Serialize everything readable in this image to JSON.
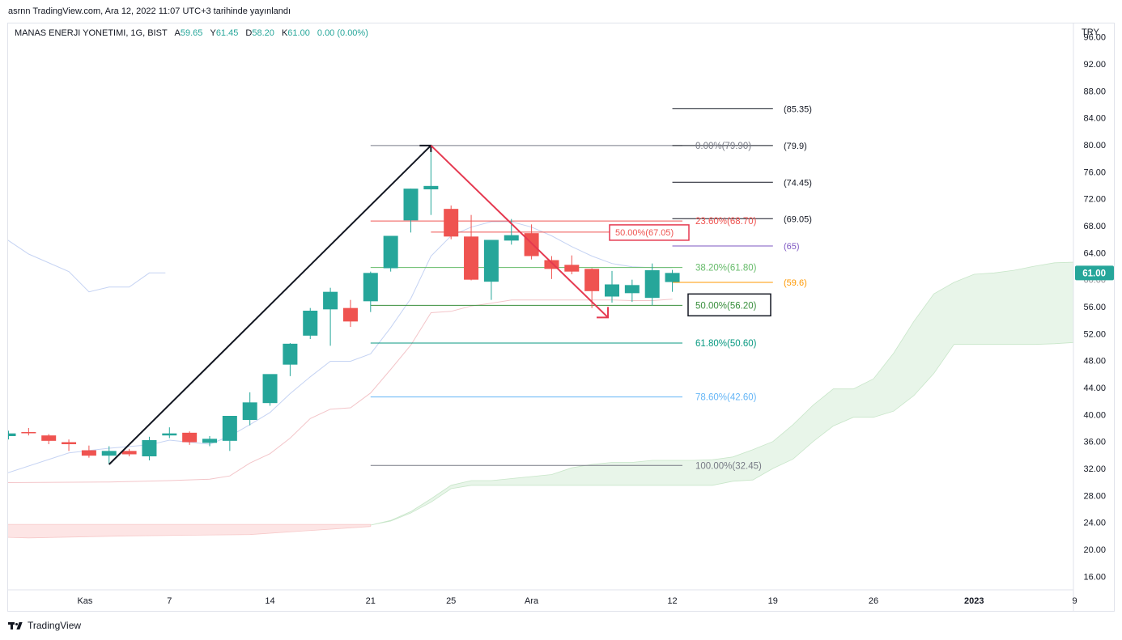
{
  "caption": "asrnn TradingView.com, Ara 12, 2022 11:07 UTC+3 tarihinde yayınlandı",
  "legend": {
    "symbol": "MANAS ENERJI YONETIMI, 1G, BIST",
    "open_label": "A",
    "open": "59.65",
    "high_label": "Y",
    "high": "61.45",
    "low_label": "D",
    "low": "58.20",
    "close_label": "K",
    "close": "61.00",
    "change": "0.00 (0.00%)"
  },
  "currency": "TRY",
  "brand": "TradingView",
  "colors": {
    "up": "#26a69a",
    "down": "#ef5350",
    "tenkan": "#c5d3f3",
    "kijun": "#f3c5c9",
    "cloud_bull": "#e8f5e9",
    "cloud_bear": "#fde5e5",
    "fib_red": "#ef5350",
    "fib_green_light": "#66bb6a",
    "fib_green": "#388e3c",
    "fib_teal": "#089981",
    "fib_blue": "#64b5f6",
    "fib_gray": "#787b86",
    "orange": "#ff9800",
    "purple": "#7e57c2"
  },
  "chart_data": {
    "type": "candlestick",
    "ylim": [
      14,
      98
    ],
    "y_ticks": [
      "16.00",
      "20.00",
      "24.00",
      "28.00",
      "32.00",
      "36.00",
      "40.00",
      "44.00",
      "48.00",
      "52.00",
      "56.00",
      "60.00",
      "64.00",
      "68.00",
      "72.00",
      "76.00",
      "80.00",
      "84.00",
      "88.00",
      "92.00",
      "96.00"
    ],
    "x_ticks": [
      {
        "slot": 3.8,
        "label": "Kas"
      },
      {
        "slot": 8,
        "label": "7"
      },
      {
        "slot": 13,
        "label": "14"
      },
      {
        "slot": 18,
        "label": "21"
      },
      {
        "slot": 22,
        "label": "25"
      },
      {
        "slot": 26,
        "label": "Ara"
      },
      {
        "slot": 33,
        "label": "12"
      },
      {
        "slot": 38,
        "label": "19"
      },
      {
        "slot": 43,
        "label": "26"
      },
      {
        "slot": 48,
        "label": "2023",
        "bold": true
      },
      {
        "slot": 53,
        "label": "9"
      }
    ],
    "candles": [
      {
        "slot": 0,
        "o": 36.8,
        "h": 37.6,
        "l": 36.3,
        "c": 37.2
      },
      {
        "slot": 1,
        "o": 37.4,
        "h": 38.0,
        "l": 36.9,
        "c": 37.3
      },
      {
        "slot": 2,
        "o": 36.9,
        "h": 37.1,
        "l": 35.6,
        "c": 36.1
      },
      {
        "slot": 3,
        "o": 35.9,
        "h": 36.3,
        "l": 34.6,
        "c": 35.6
      },
      {
        "slot": 4,
        "o": 34.7,
        "h": 35.4,
        "l": 33.6,
        "c": 33.9
      },
      {
        "slot": 5,
        "o": 33.9,
        "h": 35.3,
        "l": 32.6,
        "c": 34.6
      },
      {
        "slot": 6,
        "o": 34.6,
        "h": 34.9,
        "l": 33.8,
        "c": 34.1
      },
      {
        "slot": 7,
        "o": 33.8,
        "h": 36.7,
        "l": 33.2,
        "c": 36.2
      },
      {
        "slot": 8,
        "o": 36.9,
        "h": 38.1,
        "l": 36.5,
        "c": 37.2
      },
      {
        "slot": 9,
        "o": 37.3,
        "h": 37.5,
        "l": 35.5,
        "c": 35.9
      },
      {
        "slot": 10,
        "o": 35.8,
        "h": 36.8,
        "l": 35.3,
        "c": 36.4
      },
      {
        "slot": 11,
        "o": 36.1,
        "h": 39.6,
        "l": 34.6,
        "c": 39.8
      },
      {
        "slot": 12,
        "o": 39.2,
        "h": 43.3,
        "l": 38.4,
        "c": 41.8
      },
      {
        "slot": 13,
        "o": 41.7,
        "h": 45.9,
        "l": 41.3,
        "c": 46.0
      },
      {
        "slot": 14,
        "o": 47.4,
        "h": 50.6,
        "l": 45.7,
        "c": 50.5
      },
      {
        "slot": 15,
        "o": 51.7,
        "h": 55.8,
        "l": 51.2,
        "c": 55.4
      },
      {
        "slot": 16,
        "o": 55.6,
        "h": 58.8,
        "l": 50.2,
        "c": 58.2
      },
      {
        "slot": 17,
        "o": 55.8,
        "h": 57.0,
        "l": 53.0,
        "c": 53.8
      },
      {
        "slot": 18,
        "o": 56.8,
        "h": 61.2,
        "l": 55.2,
        "c": 61.0
      },
      {
        "slot": 19,
        "o": 61.7,
        "h": 66.5,
        "l": 61.2,
        "c": 66.5
      },
      {
        "slot": 20,
        "o": 68.8,
        "h": 73.5,
        "l": 67.0,
        "c": 73.5
      },
      {
        "slot": 21,
        "o": 73.4,
        "h": 79.8,
        "l": 69.6,
        "c": 73.9
      },
      {
        "slot": 22,
        "o": 70.5,
        "h": 71.0,
        "l": 66.0,
        "c": 66.4
      },
      {
        "slot": 23,
        "o": 66.4,
        "h": 69.6,
        "l": 59.9,
        "c": 60.0
      },
      {
        "slot": 24,
        "o": 59.7,
        "h": 65.9,
        "l": 57.0,
        "c": 65.9
      },
      {
        "slot": 25,
        "o": 65.8,
        "h": 69.0,
        "l": 65.2,
        "c": 66.6
      },
      {
        "slot": 26,
        "o": 66.9,
        "h": 68.2,
        "l": 63.0,
        "c": 63.5
      },
      {
        "slot": 27,
        "o": 62.9,
        "h": 63.5,
        "l": 60.1,
        "c": 61.6
      },
      {
        "slot": 28,
        "o": 62.2,
        "h": 63.6,
        "l": 60.8,
        "c": 61.2
      },
      {
        "slot": 29,
        "o": 61.6,
        "h": 61.7,
        "l": 55.8,
        "c": 58.3
      },
      {
        "slot": 30,
        "o": 57.5,
        "h": 61.3,
        "l": 56.6,
        "c": 59.3
      },
      {
        "slot": 31,
        "o": 58.0,
        "h": 60.0,
        "l": 56.7,
        "c": 59.2
      },
      {
        "slot": 32,
        "o": 57.3,
        "h": 62.4,
        "l": 56.2,
        "c": 61.4
      },
      {
        "slot": 33,
        "o": 59.65,
        "h": 61.45,
        "l": 58.2,
        "c": 61.0
      }
    ],
    "tenkan": [
      [
        -0.2,
        66.2
      ],
      [
        1,
        63.8
      ],
      [
        3,
        61.2
      ],
      [
        4,
        58.2
      ],
      [
        5,
        58.9
      ],
      [
        6,
        58.9
      ],
      [
        7,
        61.0
      ],
      [
        7.8,
        61.0
      ]
    ],
    "tenkan2": [
      [
        -0.2,
        31.2
      ],
      [
        3,
        34.3
      ],
      [
        5,
        35.0
      ],
      [
        7,
        35.5
      ],
      [
        8,
        36.2
      ],
      [
        10,
        35.6
      ],
      [
        11,
        36.8
      ],
      [
        12,
        38.5
      ],
      [
        13,
        40.3
      ],
      [
        14,
        43.1
      ],
      [
        15,
        45.6
      ],
      [
        16,
        47.9
      ],
      [
        17,
        47.9
      ],
      [
        18,
        49.0
      ],
      [
        19,
        52.9
      ],
      [
        20,
        57.2
      ],
      [
        21,
        63.5
      ],
      [
        22,
        66.5
      ],
      [
        23,
        67.8
      ],
      [
        24,
        68.6
      ],
      [
        25,
        68.6
      ],
      [
        26,
        67.8
      ],
      [
        27,
        66.5
      ],
      [
        28,
        64.9
      ],
      [
        29,
        63.5
      ],
      [
        30,
        62.4
      ],
      [
        31,
        61.9
      ],
      [
        32,
        61.8
      ],
      [
        33,
        61.8
      ]
    ],
    "kijun": [
      [
        -0.2,
        29.9
      ],
      [
        5,
        30.0
      ],
      [
        8,
        30.2
      ],
      [
        10,
        30.4
      ],
      [
        11,
        30.9
      ],
      [
        12,
        32.8
      ],
      [
        13,
        34.2
      ],
      [
        14,
        36.5
      ],
      [
        15,
        39.4
      ],
      [
        16,
        40.8
      ],
      [
        17,
        41.0
      ],
      [
        18,
        43.2
      ],
      [
        19,
        46.7
      ],
      [
        20,
        50.3
      ],
      [
        21,
        55.1
      ],
      [
        22,
        55.3
      ],
      [
        23,
        56.1
      ],
      [
        24,
        56.5
      ],
      [
        25,
        57.0
      ],
      [
        26,
        57.0
      ],
      [
        27,
        57.0
      ],
      [
        28,
        57.0
      ],
      [
        29,
        57.0
      ],
      [
        30,
        57.0
      ],
      [
        31,
        56.9
      ],
      [
        32,
        56.9
      ],
      [
        33,
        57.1
      ]
    ],
    "cloud_green_top": [
      [
        18,
        23.6
      ],
      [
        19,
        24.3
      ],
      [
        20,
        25.6
      ],
      [
        21,
        27.5
      ],
      [
        22,
        29.5
      ],
      [
        23,
        30.2
      ],
      [
        24,
        30.2
      ],
      [
        25,
        30.5
      ],
      [
        26,
        30.8
      ],
      [
        27,
        31.1
      ],
      [
        28,
        32.1
      ],
      [
        29,
        32.6
      ],
      [
        30,
        32.9
      ],
      [
        31,
        32.9
      ],
      [
        32,
        33.2
      ],
      [
        33,
        33.2
      ],
      [
        34,
        33.2
      ],
      [
        35,
        33.3
      ],
      [
        36,
        33.7
      ],
      [
        37,
        34.8
      ],
      [
        38,
        36.0
      ],
      [
        39,
        38.5
      ],
      [
        40,
        41.4
      ],
      [
        41,
        43.8
      ],
      [
        42,
        43.8
      ],
      [
        43,
        45.3
      ],
      [
        44,
        49.1
      ],
      [
        45,
        53.8
      ],
      [
        46,
        57.9
      ],
      [
        47,
        59.6
      ],
      [
        48,
        60.8
      ],
      [
        49,
        61.0
      ],
      [
        50,
        61.4
      ],
      [
        51,
        62.0
      ],
      [
        52,
        62.5
      ],
      [
        53,
        62.6
      ],
      [
        54,
        62.6
      ]
    ],
    "cloud_green_bot": [
      [
        54,
        50.7
      ],
      [
        53,
        50.7
      ],
      [
        52,
        50.5
      ],
      [
        51,
        50.4
      ],
      [
        50,
        50.4
      ],
      [
        49,
        50.4
      ],
      [
        48,
        50.4
      ],
      [
        47,
        50.4
      ],
      [
        46,
        46.1
      ],
      [
        45,
        42.8
      ],
      [
        44,
        40.5
      ],
      [
        43,
        39.6
      ],
      [
        42,
        39.6
      ],
      [
        41,
        38.3
      ],
      [
        40,
        36.0
      ],
      [
        39,
        33.4
      ],
      [
        38,
        32.0
      ],
      [
        37,
        30.3
      ],
      [
        36,
        30.1
      ],
      [
        35,
        29.5
      ],
      [
        34,
        29.5
      ],
      [
        33,
        29.5
      ],
      [
        32,
        29.5
      ],
      [
        31,
        29.5
      ],
      [
        30,
        29.5
      ],
      [
        29,
        29.5
      ],
      [
        28,
        29.5
      ],
      [
        27,
        29.5
      ],
      [
        26,
        29.5
      ],
      [
        25,
        29.5
      ],
      [
        24,
        29.5
      ],
      [
        23,
        29.5
      ],
      [
        22,
        29.0
      ],
      [
        21,
        27.0
      ],
      [
        20,
        25.4
      ],
      [
        19,
        24.2
      ],
      [
        18,
        23.6
      ]
    ],
    "cloud_red_top": [
      [
        -0.2,
        23.7
      ],
      [
        18,
        23.7
      ]
    ],
    "cloud_red_bot": [
      [
        18,
        23.4
      ],
      [
        12,
        22.2
      ],
      [
        6,
        22.0
      ],
      [
        1,
        21.7
      ],
      [
        -0.2,
        21.8
      ]
    ],
    "trendline_up": [
      [
        5,
        32.6
      ],
      [
        21,
        79.9
      ]
    ],
    "trendline_down": [
      [
        21,
        79.9
      ],
      [
        29.8,
        54.4
      ]
    ],
    "fib_levels": [
      {
        "label": "0.00%(79.90)",
        "value": 79.9,
        "color": "#787b86"
      },
      {
        "label": "23.60%(68.70)",
        "value": 68.7,
        "color": "#ef5350"
      },
      {
        "label": "38.20%(61.80)",
        "value": 61.8,
        "color": "#66bb6a"
      },
      {
        "label": "50.00%(56.20)",
        "value": 56.2,
        "color": "#388e3c",
        "boxed": true
      },
      {
        "label": "61.80%(50.60)",
        "value": 50.6,
        "color": "#089981"
      },
      {
        "label": "78.60%(42.60)",
        "value": 42.6,
        "color": "#64b5f6"
      },
      {
        "label": "100.00%(32.45)",
        "value": 32.45,
        "color": "#787b86"
      }
    ],
    "retrace_mid": {
      "label": "50.00%(67.05)",
      "value": 67.05,
      "color": "#ef5350"
    },
    "price_targets": [
      {
        "label": "(85.35)",
        "value": 85.35,
        "color": "#131722",
        "line": true
      },
      {
        "label": "(79.9)",
        "value": 79.9,
        "color": "#131722",
        "line": true
      },
      {
        "label": "(74.45)",
        "value": 74.45,
        "color": "#131722",
        "line": true
      },
      {
        "label": "(69.05)",
        "value": 69.05,
        "color": "#131722",
        "line": true
      },
      {
        "label": "(65)",
        "value": 65,
        "color": "#7e57c2",
        "line": true
      },
      {
        "label": "(59.6)",
        "value": 59.6,
        "color": "#ff9800",
        "line": true
      }
    ],
    "last_price": {
      "label": "61.00",
      "value": 61.0,
      "color": "#26a69a"
    }
  }
}
